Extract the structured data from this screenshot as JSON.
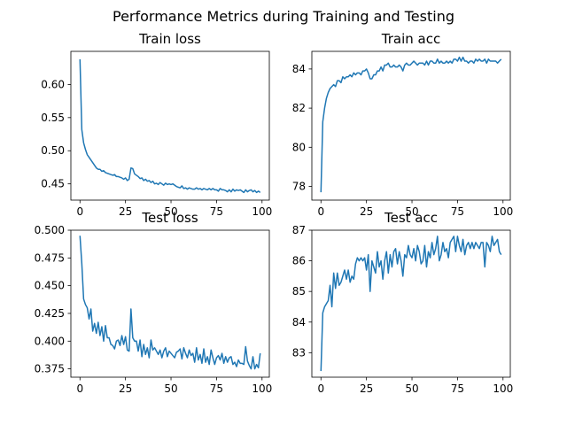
{
  "figure": {
    "suptitle": "Performance Metrics during Training and Testing"
  },
  "line_color": "#1f77b4",
  "chart_data": [
    {
      "type": "line",
      "title": "Train loss",
      "xlabel": "",
      "ylabel": "",
      "xlim": [
        -5,
        104
      ],
      "ylim": [
        0.4255,
        0.65
      ],
      "xticks": [
        0,
        25,
        50,
        75,
        100
      ],
      "xtick_labels": [
        "0",
        "25",
        "50",
        "75",
        "100"
      ],
      "yticks": [
        0.45,
        0.5,
        0.55,
        0.6
      ],
      "ytick_labels": [
        "0.45",
        "0.50",
        "0.55",
        "0.60"
      ],
      "grid": false,
      "series": [
        {
          "values": [
            0.638,
            0.532,
            0.512,
            0.502,
            0.494,
            0.49,
            0.486,
            0.482,
            0.478,
            0.474,
            0.472,
            0.472,
            0.469,
            0.47,
            0.467,
            0.466,
            0.465,
            0.464,
            0.463,
            0.464,
            0.461,
            0.461,
            0.46,
            0.459,
            0.457,
            0.459,
            0.455,
            0.457,
            0.474,
            0.473,
            0.465,
            0.463,
            0.461,
            0.458,
            0.459,
            0.455,
            0.457,
            0.454,
            0.455,
            0.452,
            0.454,
            0.45,
            0.451,
            0.449,
            0.452,
            0.45,
            0.448,
            0.451,
            0.449,
            0.45,
            0.449,
            0.45,
            0.448,
            0.446,
            0.445,
            0.444,
            0.447,
            0.443,
            0.444,
            0.442,
            0.444,
            0.443,
            0.442,
            0.442,
            0.444,
            0.442,
            0.443,
            0.441,
            0.443,
            0.442,
            0.441,
            0.443,
            0.441,
            0.443,
            0.441,
            0.441,
            0.439,
            0.443,
            0.441,
            0.441,
            0.44,
            0.438,
            0.441,
            0.438,
            0.442,
            0.439,
            0.441,
            0.44,
            0.441,
            0.439,
            0.437,
            0.441,
            0.438,
            0.44,
            0.441,
            0.438,
            0.44,
            0.437,
            0.439,
            0.437
          ]
        }
      ]
    },
    {
      "type": "line",
      "title": "Train acc",
      "xlabel": "",
      "ylabel": "",
      "xlim": [
        -5,
        104
      ],
      "ylim": [
        77.3,
        84.9
      ],
      "xticks": [
        0,
        25,
        50,
        75,
        100
      ],
      "xtick_labels": [
        "0",
        "25",
        "50",
        "75",
        "100"
      ],
      "yticks": [
        78,
        80,
        82,
        84
      ],
      "ytick_labels": [
        "78",
        "80",
        "82",
        "84"
      ],
      "grid": false,
      "series": [
        {
          "values": [
            77.7,
            81.3,
            82.0,
            82.5,
            82.8,
            83.0,
            83.1,
            83.2,
            83.1,
            83.4,
            83.4,
            83.3,
            83.6,
            83.5,
            83.6,
            83.6,
            83.7,
            83.6,
            83.8,
            83.7,
            83.8,
            83.8,
            83.7,
            83.9,
            83.9,
            84.0,
            83.8,
            83.5,
            83.5,
            83.7,
            83.7,
            83.9,
            83.9,
            84.1,
            83.9,
            84.2,
            84.2,
            84.3,
            84.1,
            84.1,
            84.2,
            84.1,
            84.1,
            84.2,
            84.1,
            83.9,
            84.2,
            84.3,
            84.2,
            84.2,
            84.3,
            84.4,
            84.3,
            84.2,
            84.3,
            84.3,
            84.3,
            84.2,
            84.4,
            84.2,
            84.4,
            84.4,
            84.3,
            84.3,
            84.5,
            84.3,
            84.4,
            84.3,
            84.3,
            84.4,
            84.3,
            84.4,
            84.3,
            84.5,
            84.5,
            84.4,
            84.6,
            84.4,
            84.6,
            84.4,
            84.4,
            84.3,
            84.4,
            84.4,
            84.3,
            84.5,
            84.4,
            84.5,
            84.4,
            84.4,
            84.5,
            84.3,
            84.5,
            84.4,
            84.4,
            84.4,
            84.4,
            84.3,
            84.4,
            84.5
          ]
        }
      ]
    },
    {
      "type": "line",
      "title": "Test loss",
      "xlabel": "",
      "ylabel": "",
      "xlim": [
        -5,
        104
      ],
      "ylim": [
        0.3675,
        0.5
      ],
      "xticks": [
        0,
        25,
        50,
        75,
        100
      ],
      "xtick_labels": [
        "0",
        "25",
        "50",
        "75",
        "100"
      ],
      "yticks": [
        0.375,
        0.4,
        0.425,
        0.45,
        0.475,
        0.5
      ],
      "ytick_labels": [
        "0.375",
        "0.400",
        "0.425",
        "0.450",
        "0.475",
        "0.500"
      ],
      "grid": false,
      "series": [
        {
          "values": [
            0.495,
            0.47,
            0.438,
            0.433,
            0.43,
            0.42,
            0.429,
            0.409,
            0.416,
            0.407,
            0.417,
            0.405,
            0.413,
            0.4,
            0.414,
            0.403,
            0.403,
            0.397,
            0.396,
            0.393,
            0.4,
            0.401,
            0.396,
            0.405,
            0.397,
            0.404,
            0.392,
            0.391,
            0.429,
            0.403,
            0.4,
            0.4,
            0.391,
            0.401,
            0.386,
            0.397,
            0.388,
            0.394,
            0.385,
            0.401,
            0.392,
            0.394,
            0.391,
            0.388,
            0.392,
            0.385,
            0.391,
            0.394,
            0.386,
            0.391,
            0.389,
            0.387,
            0.385,
            0.39,
            0.391,
            0.393,
            0.384,
            0.394,
            0.389,
            0.385,
            0.392,
            0.387,
            0.389,
            0.381,
            0.394,
            0.383,
            0.388,
            0.38,
            0.393,
            0.381,
            0.386,
            0.379,
            0.392,
            0.385,
            0.379,
            0.385,
            0.387,
            0.383,
            0.389,
            0.38,
            0.386,
            0.381,
            0.385,
            0.386,
            0.379,
            0.381,
            0.377,
            0.383,
            0.38,
            0.38,
            0.379,
            0.395,
            0.382,
            0.378,
            0.375,
            0.386,
            0.375,
            0.379,
            0.376,
            0.389
          ]
        }
      ]
    },
    {
      "type": "line",
      "title": "Test acc",
      "xlabel": "",
      "ylabel": "",
      "xlim": [
        -5,
        104
      ],
      "ylim": [
        82.2,
        87.0
      ],
      "xticks": [
        0,
        25,
        50,
        75,
        100
      ],
      "xtick_labels": [
        "0",
        "25",
        "50",
        "75",
        "100"
      ],
      "yticks": [
        83,
        84,
        85,
        86,
        87
      ],
      "ytick_labels": [
        "83",
        "84",
        "85",
        "86",
        "87"
      ],
      "grid": false,
      "series": [
        {
          "values": [
            82.4,
            84.3,
            84.5,
            84.6,
            84.7,
            85.2,
            84.5,
            85.6,
            85.1,
            85.6,
            85.2,
            85.3,
            85.5,
            85.7,
            85.4,
            85.7,
            85.3,
            85.5,
            85.4,
            85.9,
            86.1,
            86.0,
            86.1,
            86.0,
            86.1,
            85.7,
            86.2,
            85.0,
            86.0,
            85.8,
            85.6,
            86.3,
            85.8,
            86.0,
            85.4,
            86.0,
            86.3,
            85.6,
            86.2,
            85.8,
            86.3,
            86.4,
            85.9,
            86.3,
            86.0,
            85.5,
            86.2,
            86.1,
            86.5,
            86.2,
            86.1,
            86.4,
            86.0,
            86.5,
            86.3,
            85.9,
            86.0,
            86.5,
            85.8,
            86.3,
            86.1,
            86.6,
            86.2,
            86.4,
            86.8,
            86.0,
            86.2,
            86.6,
            86.3,
            86.4,
            86.1,
            86.6,
            86.7,
            86.8,
            86.3,
            86.8,
            86.5,
            86.3,
            86.7,
            86.2,
            86.5,
            86.6,
            86.4,
            86.6,
            86.4,
            86.6,
            86.5,
            86.4,
            86.6,
            86.6,
            85.8,
            86.6,
            86.5,
            86.3,
            86.8,
            86.5,
            86.6,
            86.7,
            86.3,
            86.2
          ]
        }
      ]
    }
  ]
}
